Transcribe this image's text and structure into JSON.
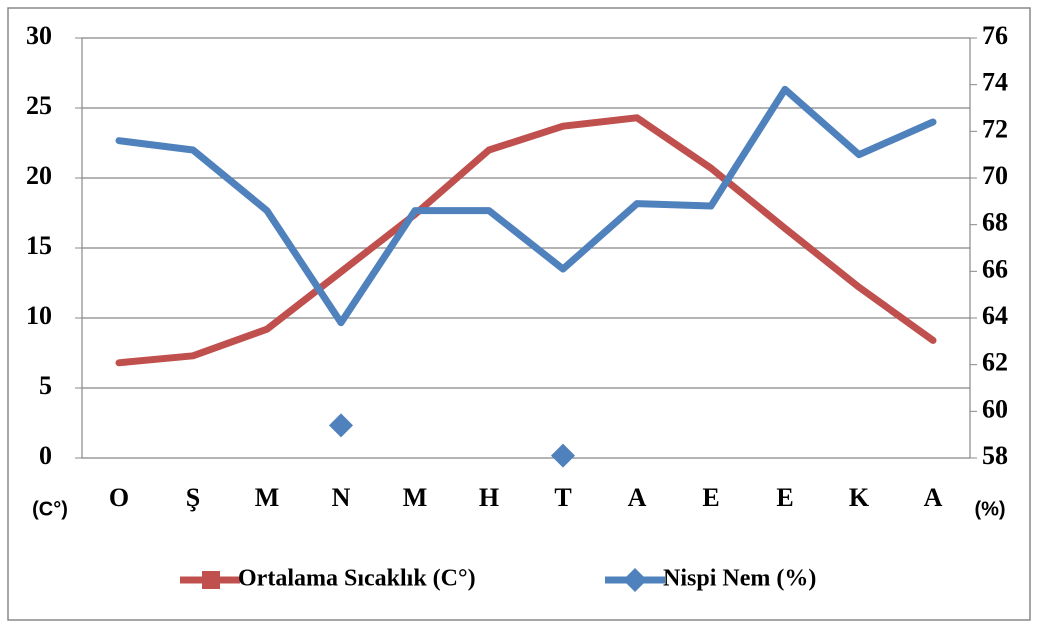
{
  "chart_data": {
    "type": "line",
    "categories": [
      "O",
      "Ş",
      "M",
      "N",
      "M",
      "H",
      "T",
      "A",
      "E",
      "E",
      "K",
      "A"
    ],
    "series": [
      {
        "name": "Ortalama Sıcaklık (C°)",
        "color": "#c0504d",
        "values": [
          6.8,
          7.3,
          9.2,
          13.3,
          17.4,
          22.0,
          23.7,
          24.3,
          20.7,
          16.4,
          12.2,
          8.4
        ]
      },
      {
        "name": "Nispi Nem (%)",
        "color": "#4f81bd",
        "axis": "y2",
        "values": [
          71.6,
          71.2,
          68.6,
          63.8,
          68.6,
          68.6,
          66.1,
          68.9,
          68.8,
          73.8,
          71.0,
          72.4
        ]
      }
    ],
    "extra_points": [
      {
        "category_index": 3,
        "value": 59.4
      },
      {
        "category_index": 6,
        "value": 58.1
      }
    ],
    "ylabel": "(C°)",
    "y2label": "(%)",
    "ylim": [
      0,
      30
    ],
    "yticks": [
      0,
      5,
      10,
      15,
      20,
      25,
      30
    ],
    "y2lim": [
      58,
      76
    ],
    "y2ticks": [
      58,
      60,
      62,
      64,
      66,
      68,
      70,
      72,
      74,
      76
    ],
    "grid": true,
    "legend": "bottom"
  }
}
